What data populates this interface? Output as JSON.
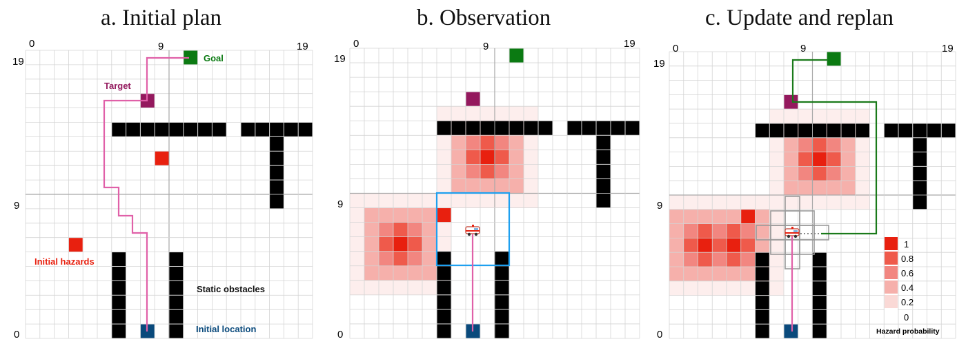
{
  "panels": [
    {
      "title": "a. Initial plan",
      "tick_labels": {
        "x_start": "0",
        "x_mid": "9",
        "x_end": "19",
        "y_top": "19",
        "y_mid": "9",
        "y_bottom": "0"
      },
      "annotations": {
        "goal": "Goal",
        "target": "Target",
        "initial_hazards": "Initial hazards",
        "static_obstacles": "Static obstacles",
        "initial_location": "Initial location"
      }
    },
    {
      "title": "b. Observation",
      "tick_labels": {
        "x_start": "0",
        "x_mid": "9",
        "x_end": "19",
        "y_top": "19",
        "y_mid": "9",
        "y_bottom": "0"
      }
    },
    {
      "title": "c. Update and replan",
      "tick_labels": {
        "x_start": "0",
        "x_mid": "9",
        "x_end": "19",
        "y_top": "19",
        "y_mid": "9",
        "y_bottom": "0"
      },
      "legend": {
        "title": "Hazard probability",
        "labels": [
          "1",
          "0.8",
          "0.6",
          "0.4",
          "0.2",
          "0"
        ]
      }
    }
  ],
  "colors": {
    "goal": "#0b7a12",
    "target": "#94195e",
    "hazard": "#e8200f",
    "obstacle": "#000000",
    "start": "#0a4a7c",
    "initial_path": "#e060a8",
    "replan_path": "#1a7a1a",
    "observation_window": "#1ea0f0",
    "grid": "#d4d4d4",
    "label_goal": "#0b7a12",
    "label_target": "#94195e",
    "label_hazards": "#e8200f",
    "label_obstacles": "#111111",
    "label_location": "#0a4a7c"
  },
  "icons": {
    "vehicle": "ambulance-icon"
  }
}
